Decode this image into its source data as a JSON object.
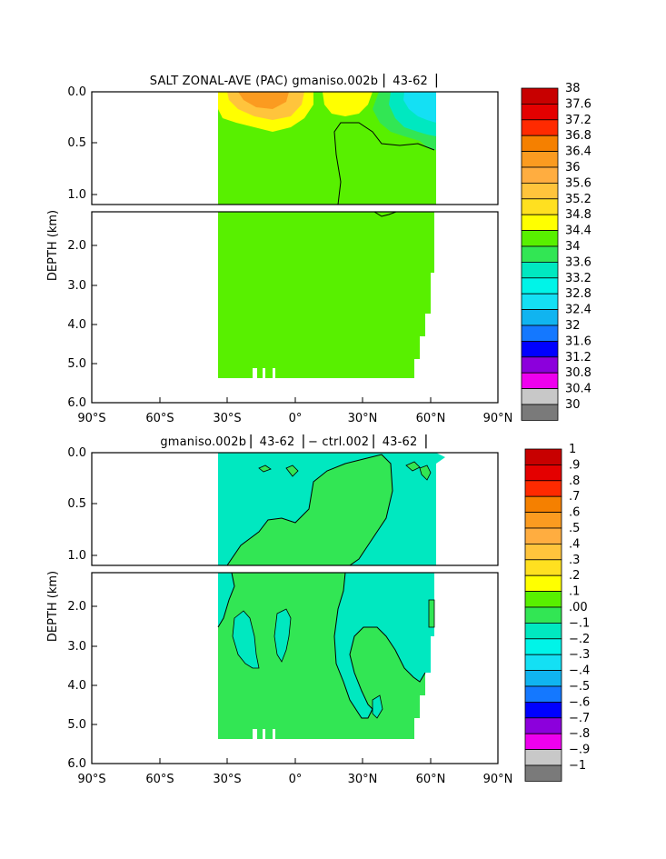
{
  "chart_data": [
    {
      "type": "heatmap",
      "title": "SALT ZONAL-AVE (PAC) gmaniso.002b  ▏43-62▕",
      "ylabel": "DEPTH (km)",
      "xlim": [
        -90,
        90
      ],
      "ylim": [
        0,
        6
      ],
      "y_break": 1.1,
      "x_ticks": [
        -90,
        -60,
        -30,
        0,
        30,
        60,
        90
      ],
      "x_tick_labels": [
        "90°S",
        "60°S",
        "30°S",
        "0°",
        "30°N",
        "60°N",
        "90°N"
      ],
      "y_ticks": [
        0,
        0.5,
        1,
        2,
        3,
        4,
        5,
        6
      ],
      "y_tick_labels": [
        "0.0",
        "0.5",
        "1.0",
        "2.0",
        "3.0",
        "4.0",
        "5.0",
        "6.0"
      ],
      "colorbar_levels": [
        "38",
        "37.6",
        "37.2",
        "36.8",
        "36.4",
        "36",
        "35.6",
        "35.2",
        "34.8",
        "34.4",
        "34",
        "33.6",
        "33.2",
        "32.8",
        "32.4",
        "32",
        "31.6",
        "31.2",
        "30.8",
        "30.4",
        "30"
      ],
      "colorbar_colors": [
        "#c80000",
        "#e40000",
        "#ff2a00",
        "#f58000",
        "#fb9b20",
        "#ffad40",
        "#ffc43c",
        "#ffe020",
        "#ffff00",
        "#58f000",
        "#32e654",
        "#00e8c0",
        "#00f4e8",
        "#14e0f4",
        "#10b4f0",
        "#1478ff",
        "#0000ff",
        "#8c00dc",
        "#ee00ee",
        "#c8c8c8",
        "#7a7a7a"
      ],
      "dominant_value_range": [
        34.4,
        34.8
      ],
      "features": [
        {
          "region": "surface 20-40S",
          "value_range": [
            35.6,
            36.4
          ]
        },
        {
          "region": "surface 10-20N",
          "value_range": [
            34.8,
            35.6
          ]
        },
        {
          "region": "surface 40-60N",
          "value_range": [
            32.8,
            34.0
          ]
        },
        {
          "region": "deep ocean",
          "value_range": [
            34.4,
            34.8
          ]
        }
      ]
    },
    {
      "type": "heatmap",
      "title": "gmaniso.002b ▏43-62▕ − ctrl.002 ▏43-62▕",
      "ylabel": "DEPTH (km)",
      "xlim": [
        -90,
        90
      ],
      "ylim": [
        0,
        6
      ],
      "y_break": 1.1,
      "x_ticks": [
        -90,
        -60,
        -30,
        0,
        30,
        60,
        90
      ],
      "x_tick_labels": [
        "90°S",
        "60°S",
        "30°S",
        "0°",
        "30°N",
        "60°N",
        "90°N"
      ],
      "y_ticks": [
        0,
        0.5,
        1,
        2,
        3,
        4,
        5,
        6
      ],
      "y_tick_labels": [
        "0.0",
        "0.5",
        "1.0",
        "2.0",
        "3.0",
        "4.0",
        "5.0",
        "6.0"
      ],
      "colorbar_levels": [
        "1",
        ".9",
        ".8",
        ".7",
        ".6",
        ".5",
        ".4",
        ".3",
        ".2",
        ".1",
        ".00",
        "−.1",
        "−.2",
        "−.3",
        "−.4",
        "−.5",
        "−.6",
        "−.7",
        "−.8",
        "−.9",
        "−1"
      ],
      "colorbar_colors": [
        "#c80000",
        "#e40000",
        "#ff2a00",
        "#f58000",
        "#fb9b20",
        "#ffad40",
        "#ffc43c",
        "#ffe020",
        "#ffff00",
        "#58f000",
        "#32e654",
        "#00e8c0",
        "#00f4e8",
        "#14e0f4",
        "#10b4f0",
        "#1478ff",
        "#0000ff",
        "#8c00dc",
        "#ee00ee",
        "#c8c8c8",
        "#7a7a7a"
      ],
      "features": [
        {
          "region": "mostly",
          "value_range": [
            -0.1,
            0.0
          ]
        },
        {
          "region": "interior tongues",
          "value_range": [
            0.0,
            0.1
          ]
        }
      ]
    }
  ]
}
